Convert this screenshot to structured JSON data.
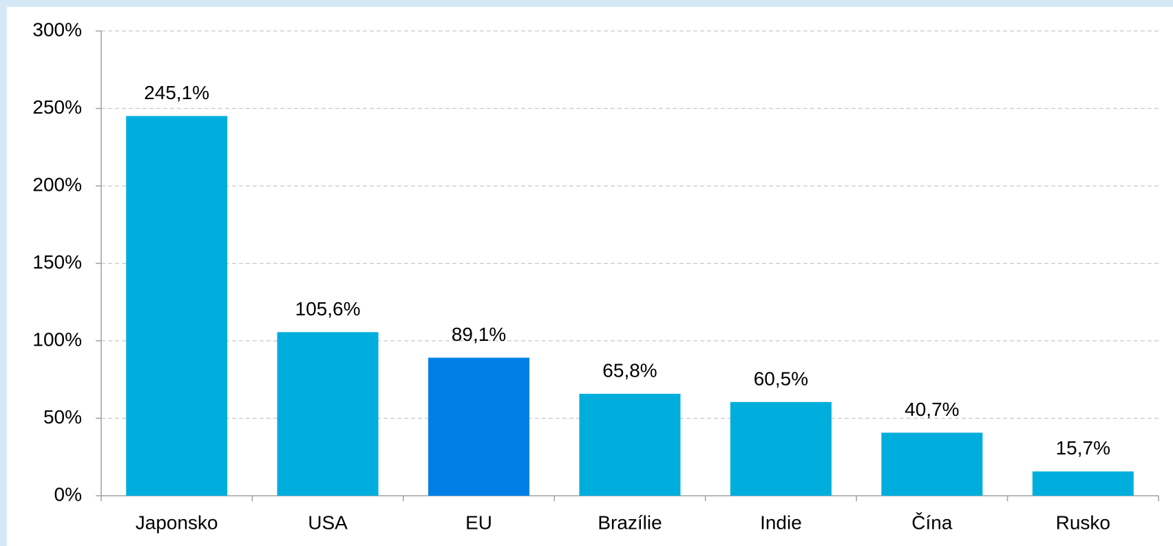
{
  "chart_data": {
    "type": "bar",
    "categories": [
      "Japonsko",
      "USA",
      "EU",
      "Brazílie",
      "Indie",
      "Čína",
      "Rusko"
    ],
    "values": [
      245.1,
      105.6,
      89.1,
      65.8,
      60.5,
      40.7,
      15.7
    ],
    "value_labels": [
      "245,1%",
      "105,6%",
      "89,1%",
      "65,8%",
      "60,5%",
      "40,7%",
      "15,7%"
    ],
    "colors": [
      "#00aedd",
      "#00aedd",
      "#0080e6",
      "#00aedd",
      "#00aedd",
      "#00aedd",
      "#00aedd"
    ],
    "ylim": [
      0,
      300
    ],
    "yticks": [
      {
        "value": 0,
        "label": "0%"
      },
      {
        "value": 50,
        "label": "50%"
      },
      {
        "value": 100,
        "label": "100%"
      },
      {
        "value": 150,
        "label": "150%"
      },
      {
        "value": 200,
        "label": "200%"
      },
      {
        "value": 250,
        "label": "250%"
      },
      {
        "value": 300,
        "label": "300%"
      }
    ],
    "grid": true
  }
}
